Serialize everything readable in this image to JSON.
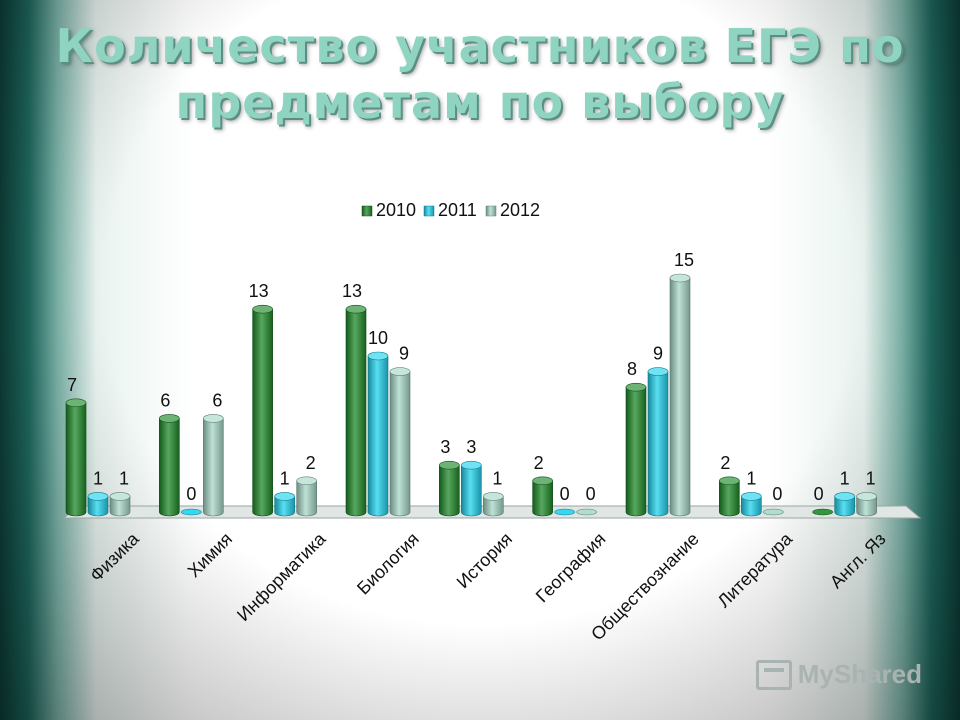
{
  "title": {
    "line1": "Количество участников ЕГЭ по",
    "line2": "предметам по выбору"
  },
  "watermark": "MyShared",
  "chart_data": {
    "type": "bar",
    "title": "Количество участников ЕГЭ по предметам по выбору",
    "categories": [
      "Физика",
      "Химия",
      "Информатика",
      "Биология",
      "История",
      "География",
      "Обществознание",
      "Литература",
      "Англ. Яз"
    ],
    "series": [
      {
        "name": "2010",
        "values": [
          7,
          6,
          13,
          13,
          3,
          2,
          8,
          2,
          0
        ],
        "color": "#1f8a2a"
      },
      {
        "name": "2011",
        "values": [
          1,
          0,
          1,
          10,
          3,
          0,
          9,
          1,
          1
        ],
        "color": "#22d3ee"
      },
      {
        "name": "2012",
        "values": [
          1,
          6,
          2,
          9,
          1,
          0,
          15,
          0,
          1
        ],
        "color": "#a8d8c8"
      }
    ],
    "ylim": [
      0,
      15
    ],
    "grid": false,
    "legend": "top",
    "data_labels": true
  }
}
